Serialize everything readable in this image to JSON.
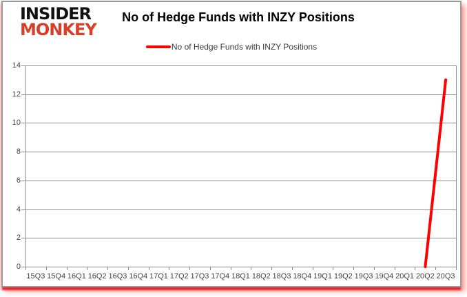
{
  "logo": {
    "line1": "INSIDER",
    "line2": "MONKEY",
    "line2_color": "#d6402b"
  },
  "header": {
    "title": "No of Hedge Funds with INZY Positions"
  },
  "legend": {
    "label": "No of Hedge Funds with INZY Positions",
    "swatch_color": "#ff0000"
  },
  "colors": {
    "line": "#ff0000",
    "grid": "#8c8c8c",
    "axis_text": "#3f3f3f",
    "card_border": "#9a9a9a",
    "glow": "#ed1c24"
  },
  "chart_data": {
    "type": "line",
    "title": "No of Hedge Funds with INZY Positions",
    "categories": [
      "15Q3",
      "15Q4",
      "16Q1",
      "16Q2",
      "16Q3",
      "16Q4",
      "17Q1",
      "17Q2",
      "17Q3",
      "17Q4",
      "18Q1",
      "18Q2",
      "18Q3",
      "18Q4",
      "19Q1",
      "19Q2",
      "19Q3",
      "19Q4",
      "20Q1",
      "20Q2",
      "20Q3"
    ],
    "series": [
      {
        "name": "No of Hedge Funds with INZY Positions",
        "color": "#ff0000",
        "values": [
          null,
          null,
          null,
          null,
          null,
          null,
          null,
          null,
          null,
          null,
          null,
          null,
          null,
          null,
          null,
          null,
          null,
          null,
          null,
          0,
          13
        ]
      }
    ],
    "xlabel": "",
    "ylabel": "",
    "ylim": [
      0,
      14
    ],
    "yticks": [
      0,
      2,
      4,
      6,
      8,
      10,
      12,
      14
    ],
    "grid": true,
    "legend_position": "top-center",
    "line_width": 4
  }
}
